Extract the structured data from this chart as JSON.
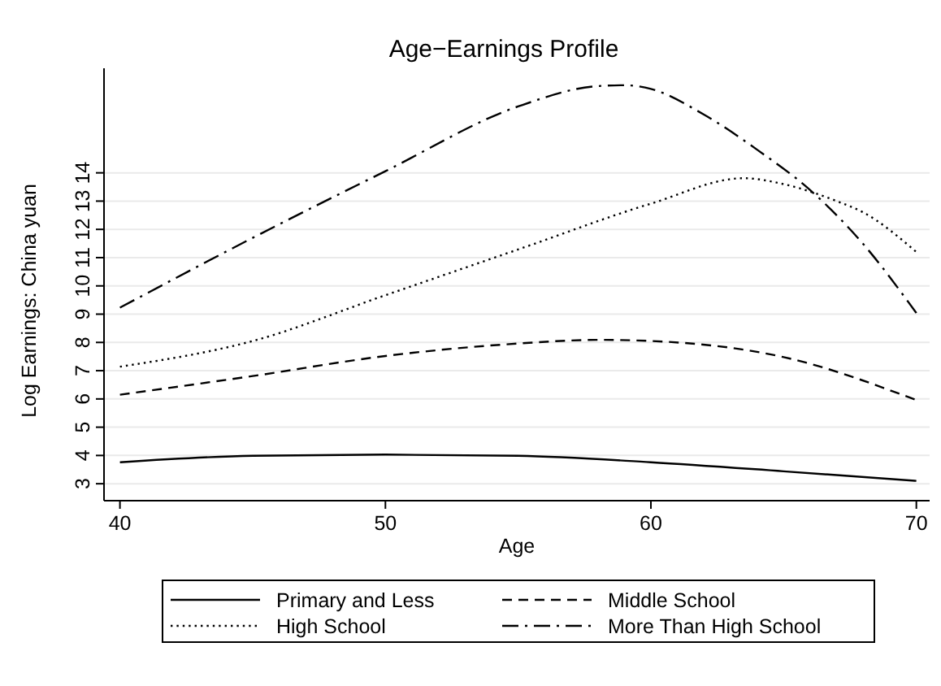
{
  "chart_data": {
    "type": "line",
    "title": "Age−Earnings Profile",
    "xlabel": "Age",
    "ylabel": "Log Earnings: China yuan",
    "xlim": [
      39.4,
      70.5
    ],
    "xticks": [
      40,
      50,
      60,
      70
    ],
    "ylim": [
      2.4,
      17.7
    ],
    "yticks": [
      3,
      4,
      5,
      6,
      7,
      8,
      9,
      10,
      11,
      12,
      13,
      14
    ],
    "grid": "y",
    "legend": "bottom",
    "series": [
      {
        "name": "Primary and Less",
        "color": "#000000",
        "line_style": "solid",
        "x": [
          40,
          45,
          50,
          55,
          60,
          65,
          70
        ],
        "values": [
          3.76,
          3.99,
          4.03,
          3.99,
          3.76,
          3.44,
          3.1
        ]
      },
      {
        "name": "Middle School",
        "color": "#000000",
        "line_style": "dashed",
        "x": [
          40,
          45,
          50,
          55,
          58,
          60,
          65,
          70
        ],
        "values": [
          6.15,
          6.81,
          7.52,
          7.96,
          8.09,
          8.05,
          7.48,
          5.96
        ]
      },
      {
        "name": "High School",
        "color": "#000000",
        "line_style": "dotted",
        "x": [
          40,
          45,
          50,
          55,
          60,
          63.5,
          65,
          67,
          68,
          70
        ],
        "values": [
          7.14,
          8.05,
          9.67,
          11.29,
          12.91,
          13.81,
          13.6,
          13.0,
          12.6,
          11.2
        ]
      },
      {
        "name": "More Than High School",
        "color": "#000000",
        "line_style": "dashdot",
        "x": [
          40,
          45,
          50,
          55,
          58,
          59,
          60,
          62,
          64,
          66,
          68,
          70
        ],
        "values": [
          9.23,
          11.7,
          14.06,
          16.35,
          17.07,
          17.1,
          16.97,
          16.06,
          14.82,
          13.39,
          11.48,
          9.04
        ]
      }
    ]
  }
}
